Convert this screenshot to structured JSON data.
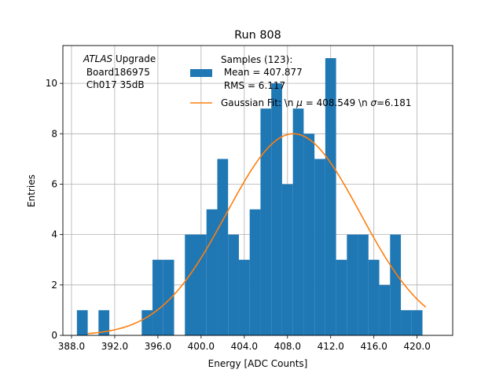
{
  "chart_data": {
    "type": "bar",
    "title": "Run 808",
    "xlabel": "Energy [ADC Counts]",
    "ylabel": "Entries",
    "xlim": [
      387.2,
      423.3
    ],
    "ylim": [
      0,
      11.5
    ],
    "xticks": [
      388.0,
      392.0,
      396.0,
      400.0,
      404.0,
      408.0,
      412.0,
      416.0,
      420.0
    ],
    "xtick_labels": [
      "388.0",
      "392.0",
      "396.0",
      "400.0",
      "404.0",
      "408.0",
      "412.0",
      "416.0",
      "420.0"
    ],
    "yticks": [
      0,
      2,
      4,
      6,
      8,
      10
    ],
    "ytick_labels": [
      "0",
      "2",
      "4",
      "6",
      "8",
      "10"
    ],
    "grid": true,
    "bin_width": 1,
    "bins": [
      {
        "x": 389,
        "count": 1
      },
      {
        "x": 390,
        "count": 0
      },
      {
        "x": 391,
        "count": 1
      },
      {
        "x": 392,
        "count": 0
      },
      {
        "x": 393,
        "count": 0
      },
      {
        "x": 394,
        "count": 0
      },
      {
        "x": 395,
        "count": 1
      },
      {
        "x": 396,
        "count": 3
      },
      {
        "x": 397,
        "count": 3
      },
      {
        "x": 398,
        "count": 0
      },
      {
        "x": 399,
        "count": 4
      },
      {
        "x": 400,
        "count": 4
      },
      {
        "x": 401,
        "count": 5
      },
      {
        "x": 402,
        "count": 7
      },
      {
        "x": 403,
        "count": 4
      },
      {
        "x": 404,
        "count": 3
      },
      {
        "x": 405,
        "count": 5
      },
      {
        "x": 406,
        "count": 9
      },
      {
        "x": 407,
        "count": 10
      },
      {
        "x": 408,
        "count": 6
      },
      {
        "x": 409,
        "count": 9
      },
      {
        "x": 410,
        "count": 8
      },
      {
        "x": 411,
        "count": 7
      },
      {
        "x": 412,
        "count": 11
      },
      {
        "x": 413,
        "count": 3
      },
      {
        "x": 414,
        "count": 4
      },
      {
        "x": 415,
        "count": 4
      },
      {
        "x": 416,
        "count": 3
      },
      {
        "x": 417,
        "count": 2
      },
      {
        "x": 418,
        "count": 4
      },
      {
        "x": 419,
        "count": 1
      },
      {
        "x": 420,
        "count": 1
      }
    ],
    "fit": {
      "mu": 408.549,
      "sigma": 6.181,
      "amplitude": 8.0,
      "x_range": [
        389.5,
        420.8
      ]
    },
    "annotation": {
      "prefix": "ATLAS",
      "line1_suffix": " Upgrade",
      "line2": " Board186975",
      "line3": " Ch017 35dB"
    },
    "legend": {
      "position": "upper-right",
      "samples_lines": [
        "Samples (123):",
        " Mean = 407.877",
        " RMS = 6.117"
      ],
      "fit_label_a": "Gaussian Fit: \\n ",
      "fit_mu_sym": "μ",
      "fit_label_b": " = 408.549 \\n ",
      "fit_sigma_sym": "σ",
      "fit_label_c": "=6.181"
    },
    "colors": {
      "bars": "#1f77b4",
      "fit": "#ff7f0e",
      "grid": "#b0b0b0"
    }
  }
}
